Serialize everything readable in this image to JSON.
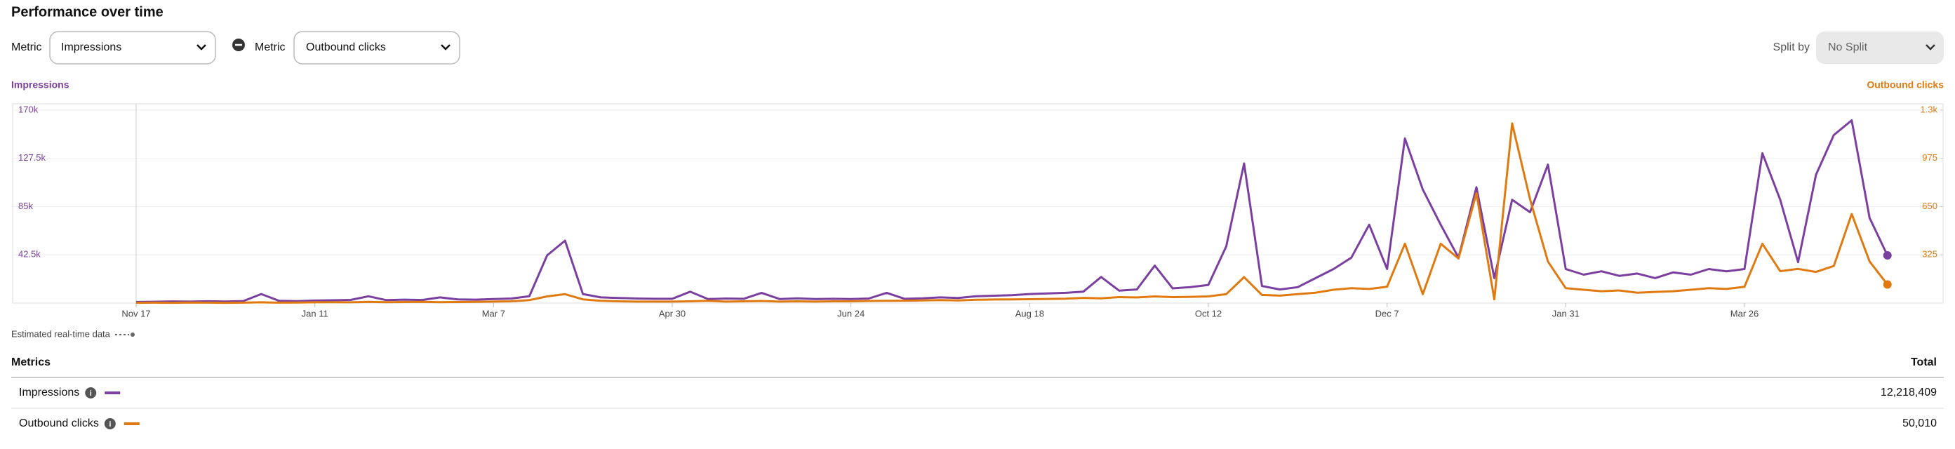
{
  "header": {
    "title": "Performance over time"
  },
  "controls": {
    "metric_label_1": "Metric",
    "metric_1": "Impressions",
    "metric_label_2": "Metric",
    "metric_2": "Outbound clicks",
    "split_label": "Split by",
    "split": "No Split"
  },
  "chart_data": {
    "type": "line",
    "categories": [
      "Nov 17",
      null,
      null,
      null,
      null,
      null,
      null,
      null,
      null,
      null,
      "Jan 11",
      null,
      null,
      null,
      null,
      null,
      null,
      null,
      null,
      null,
      "Mar 7",
      null,
      null,
      null,
      null,
      null,
      null,
      null,
      null,
      null,
      "Apr 30",
      null,
      null,
      null,
      null,
      null,
      null,
      null,
      null,
      null,
      "Jun 24",
      null,
      null,
      null,
      null,
      null,
      null,
      null,
      null,
      null,
      "Aug 18",
      null,
      null,
      null,
      null,
      null,
      null,
      null,
      null,
      null,
      "Oct 12",
      null,
      null,
      null,
      null,
      null,
      null,
      null,
      null,
      null,
      "Dec 7",
      null,
      null,
      null,
      null,
      null,
      null,
      null,
      null,
      null,
      "Jan 31",
      null,
      null,
      null,
      null,
      null,
      null,
      null,
      null,
      null,
      "Mar 26",
      null,
      null,
      null,
      null,
      null,
      null,
      null,
      null
    ],
    "series": [
      {
        "name": "Impressions",
        "color": "#7b3fa0",
        "values": [
          1000,
          1200,
          1500,
          1300,
          1600,
          1400,
          1800,
          8000,
          2000,
          1700,
          2200,
          2500,
          2800,
          6000,
          2600,
          3000,
          2700,
          5000,
          3200,
          3000,
          3500,
          4000,
          6000,
          42000,
          55000,
          8000,
          5000,
          4500,
          4000,
          3800,
          3800,
          10000,
          3500,
          4000,
          3800,
          9000,
          3600,
          4200,
          3500,
          3800,
          3500,
          4000,
          9000,
          3800,
          4200,
          5000,
          4500,
          6000,
          6500,
          7000,
          8000,
          8500,
          9000,
          10000,
          23000,
          11000,
          12000,
          33000,
          13000,
          14000,
          16000,
          50000,
          123000,
          15000,
          12000,
          14000,
          22000,
          30000,
          40000,
          69000,
          30000,
          145000,
          100000,
          69000,
          40000,
          102000,
          22000,
          91000,
          80000,
          122000,
          30000,
          25000,
          28000,
          24000,
          26000,
          22000,
          27000,
          25000,
          30000,
          28000,
          30000,
          132000,
          91000,
          36000,
          113000,
          148000,
          161000,
          75000,
          42000
        ]
      },
      {
        "name": "Outbound clicks",
        "color": "#e07a10",
        "axis": "y2",
        "values": [
          2,
          3,
          2,
          4,
          3,
          2,
          3,
          5,
          3,
          4,
          5,
          6,
          5,
          8,
          6,
          7,
          8,
          6,
          7,
          8,
          10,
          12,
          20,
          45,
          60,
          25,
          15,
          12,
          10,
          10,
          10,
          12,
          15,
          10,
          12,
          14,
          10,
          12,
          10,
          12,
          12,
          14,
          15,
          16,
          18,
          20,
          18,
          22,
          24,
          25,
          26,
          28,
          30,
          35,
          32,
          40,
          38,
          45,
          40,
          42,
          45,
          60,
          175,
          55,
          50,
          60,
          70,
          90,
          100,
          95,
          110,
          400,
          60,
          400,
          300,
          740,
          25,
          1210,
          700,
          280,
          100,
          90,
          80,
          85,
          70,
          75,
          80,
          90,
          100,
          95,
          110,
          400,
          215,
          230,
          210,
          250,
          600,
          280,
          125
        ]
      }
    ],
    "ylim": [
      0,
      175500
    ],
    "yticks": [
      {
        "value": 42500,
        "label": "42.5k"
      },
      {
        "value": 85000,
        "label": "85k"
      },
      {
        "value": 127500,
        "label": "127.5k"
      },
      {
        "value": 170000,
        "label": "170k"
      }
    ],
    "y2lim": [
      0,
      1342
    ],
    "y2ticks": [
      325,
      650,
      975,
      {
        "value": 1300,
        "label": "1.3k"
      }
    ],
    "grid": true,
    "note": "Estimated real-time data"
  },
  "table": {
    "columns": [
      "Metrics",
      "Total"
    ],
    "rows": [
      [
        "Impressions",
        "12,218,409"
      ],
      [
        "Outbound clicks",
        "50,010"
      ]
    ]
  }
}
